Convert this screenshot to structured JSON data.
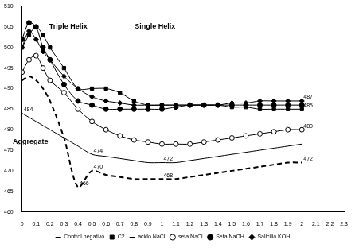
{
  "chart_data": {
    "type": "line",
    "x": [
      0,
      0.05,
      0.1,
      0.15,
      0.2,
      0.3,
      0.4,
      0.5,
      0.6,
      0.7,
      0.8,
      0.9,
      1.0,
      1.1,
      1.2,
      1.3,
      1.4,
      1.5,
      1.6,
      1.7,
      1.8,
      1.9,
      2.0
    ],
    "series": [
      {
        "name": "Control negativo",
        "color": "#000000",
        "marker": "none",
        "line_style": "solid",
        "values": [
          484,
          483,
          482,
          481,
          480,
          478,
          476,
          474,
          473.5,
          473,
          472.5,
          472,
          472,
          472,
          472.5,
          473,
          473.5,
          474,
          474.5,
          475,
          475.5,
          476,
          476.5
        ]
      },
      {
        "name": "C2",
        "color": "#000000",
        "marker": "square",
        "line_style": "solid",
        "values": [
          500,
          503,
          505,
          503,
          500,
          495,
          490,
          490,
          490,
          489,
          487,
          486,
          486,
          486,
          486,
          486,
          486,
          485.5,
          485.5,
          485,
          485,
          485,
          485
        ]
      },
      {
        "name": "acido NaCl",
        "color": "#000000",
        "marker": "none",
        "line_style": "dashed",
        "values": [
          492,
          493,
          492,
          490,
          487,
          478,
          466,
          470,
          469,
          468.5,
          468,
          468,
          468,
          468,
          468.5,
          469,
          469.5,
          470,
          470.5,
          471,
          471.5,
          472,
          472
        ]
      },
      {
        "name": "seta NaCl",
        "color": "#000000",
        "marker": "open_circle",
        "line_style": "solid",
        "values": [
          494,
          497,
          498,
          495,
          492,
          489,
          485,
          482,
          480,
          478.5,
          477.5,
          477,
          476.5,
          476.5,
          476.5,
          477,
          477.5,
          478,
          478.5,
          479,
          479.5,
          480,
          480
        ]
      },
      {
        "name": "Seta NaOH",
        "color": "#000000",
        "marker": "circle",
        "line_style": "solid",
        "values": [
          502,
          506,
          505,
          500,
          497,
          491,
          487,
          486,
          485,
          485,
          485,
          485,
          485,
          485.5,
          486,
          486,
          486,
          486,
          486,
          486,
          486,
          486,
          486
        ]
      },
      {
        "name": "Salicilia KOH",
        "color": "#000000",
        "marker": "diamond",
        "line_style": "solid",
        "values": [
          500,
          504,
          502,
          499,
          497,
          493,
          490,
          488,
          487,
          486.5,
          486,
          486,
          486,
          486,
          486,
          486,
          486,
          486.5,
          486.5,
          487,
          487,
          487,
          487
        ]
      }
    ],
    "xlim": [
      0,
      2.3
    ],
    "xticks": [
      0,
      0.1,
      0.2,
      0.3,
      0.4,
      0.5,
      0.6,
      0.7,
      0.8,
      0.9,
      1,
      1.1,
      1.2,
      1.3,
      1.4,
      1.5,
      1.6,
      1.7,
      1.8,
      1.9,
      2,
      2.1,
      2.2,
      2.3
    ],
    "ylim": [
      460,
      510
    ],
    "yticks": [
      460,
      465,
      470,
      475,
      480,
      485,
      490,
      495,
      500,
      505,
      510
    ],
    "grid": false,
    "legend": "bottom",
    "annotations": [
      {
        "text": "Triple Helix",
        "x": 0.33,
        "y": 504
      },
      {
        "text": "Single Helix",
        "x": 0.95,
        "y": 504
      },
      {
        "text": "Aggregate",
        "x": 0.06,
        "y": 476
      },
      {
        "text": "484",
        "x": 0,
        "y": 484
      },
      {
        "text": "474",
        "x": 0.5,
        "y": 474
      },
      {
        "text": "472",
        "x": 1.0,
        "y": 472
      },
      {
        "text": "466",
        "x": 0.4,
        "y": 466
      },
      {
        "text": "470",
        "x": 0.5,
        "y": 470
      },
      {
        "text": "468",
        "x": 1.0,
        "y": 468
      },
      {
        "text": "487",
        "x": 2.0,
        "y": 487
      },
      {
        "text": "485",
        "x": 2.0,
        "y": 485
      },
      {
        "text": "480",
        "x": 2.0,
        "y": 480
      },
      {
        "text": "472",
        "x": 2.0,
        "y": 472
      }
    ]
  }
}
